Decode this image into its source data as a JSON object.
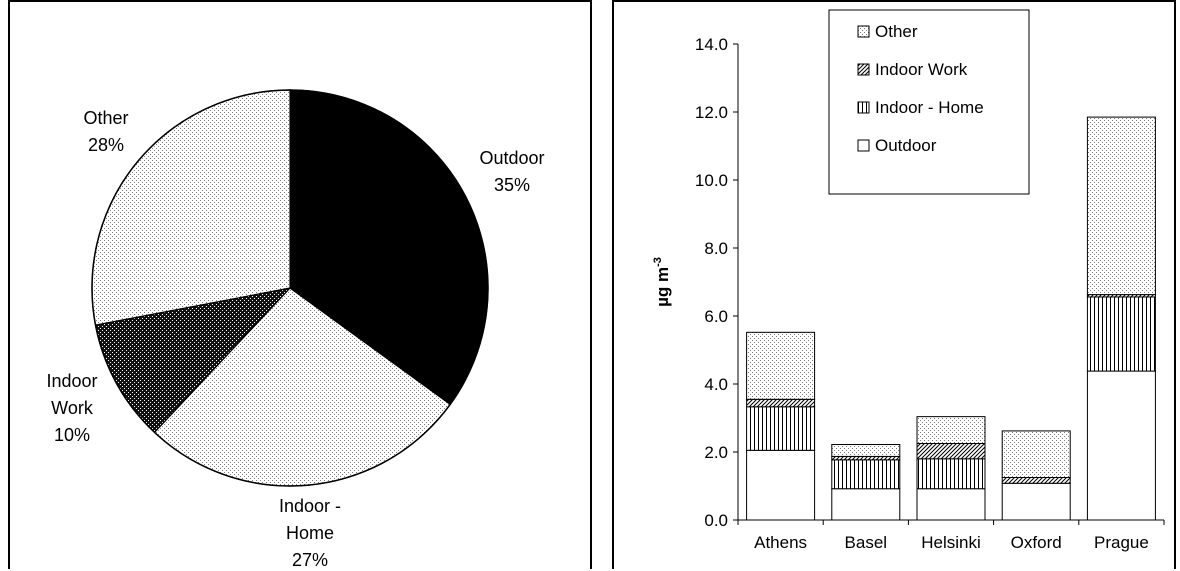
{
  "chart_data": [
    {
      "type": "pie",
      "slices": [
        {
          "label": "Outdoor",
          "pct_label": "35%",
          "value": 35
        },
        {
          "label": "Indoor - Home",
          "label_lines": [
            "Indoor -",
            "Home"
          ],
          "pct_label": "27%",
          "value": 27
        },
        {
          "label": "Indoor Work",
          "label_lines": [
            "Indoor",
            "Work"
          ],
          "pct_label": "10%",
          "value": 10
        },
        {
          "label": "Other",
          "pct_label": "28%",
          "value": 28
        }
      ],
      "colors": {
        "Outdoor": "#000000",
        "Indoor - Home": "#f3f3f3",
        "Indoor Work": "#222222",
        "Other": "#f0f0f0"
      }
    },
    {
      "type": "bar",
      "stacked": true,
      "categories": [
        "Athens",
        "Basel",
        "Helsinki",
        "Oxford",
        "Prague"
      ],
      "series": [
        {
          "name": "Outdoor",
          "values": [
            2.05,
            0.92,
            0.92,
            1.08,
            4.38
          ]
        },
        {
          "name": "Indoor - Home",
          "values": [
            1.28,
            0.85,
            0.88,
            0.0,
            2.18
          ]
        },
        {
          "name": "Indoor Work",
          "values": [
            0.22,
            0.1,
            0.45,
            0.17,
            0.07
          ]
        },
        {
          "name": "Other",
          "values": [
            1.97,
            0.35,
            0.79,
            1.37,
            5.22
          ]
        }
      ],
      "ylabel": "µg m",
      "ylabel_sup": "-3",
      "ylim": [
        0,
        14
      ],
      "yticks": [
        "0.0",
        "2.0",
        "4.0",
        "6.0",
        "8.0",
        "10.0",
        "12.0",
        "14.0"
      ],
      "legend_order": [
        "Other",
        "Indoor Work",
        "Indoor - Home",
        "Outdoor"
      ],
      "legend_position": "top-center",
      "grid": false
    }
  ]
}
